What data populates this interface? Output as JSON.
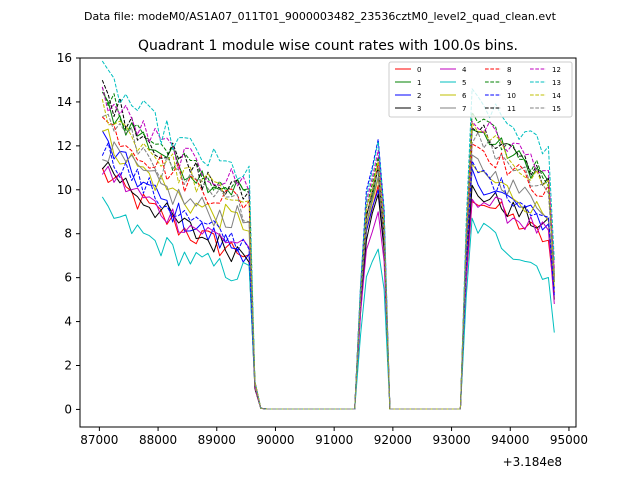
{
  "suptitle": "Data file: modeM0/AS1A07_011T01_9000003482_23536cztM0_level2_quad_clean.evt",
  "chart_data": {
    "type": "line",
    "title": "Quadrant 1 module wise count rates with 100.0s bins.",
    "xlabel": "",
    "ylabel": "",
    "x_offset_label": "+3.184e8",
    "xlim": [
      86670,
      95120
    ],
    "ylim": [
      -0.8,
      16
    ],
    "x_ticks": [
      87000,
      88000,
      89000,
      90000,
      91000,
      92000,
      93000,
      94000,
      95000
    ],
    "x_tick_labels": [
      "87000",
      "88000",
      "89000",
      "90000",
      "91000",
      "92000",
      "93000",
      "94000",
      "95000"
    ],
    "y_ticks": [
      0,
      2,
      4,
      6,
      8,
      10,
      12,
      14,
      16
    ],
    "y_tick_labels": [
      "0",
      "2",
      "4",
      "6",
      "8",
      "10",
      "12",
      "14",
      "16"
    ],
    "segments": [
      {
        "x_start": 87050,
        "x_end": 89550,
        "step": 100
      },
      {
        "x_start": 89650,
        "x_end": 89750,
        "step": 100
      },
      {
        "x_start": 89850,
        "x_end": 91350,
        "step": 100
      },
      {
        "x_start": 91450,
        "x_end": 91850,
        "step": 100
      },
      {
        "x_start": 91950,
        "x_end": 93150,
        "step": 100
      },
      {
        "x_start": 93250,
        "x_end": 94750,
        "step": 100
      }
    ],
    "series": [
      {
        "name": "0",
        "color": "#ff0000",
        "dash": "solid",
        "start": 10.8,
        "end": 7.2,
        "peak": 10.2,
        "seg5_start": 9.8,
        "seg5_end": 7.5,
        "final": 5.3
      },
      {
        "name": "1",
        "color": "#008000",
        "dash": "solid",
        "start": 14.0,
        "end": 10.0,
        "peak": 11.0,
        "seg5_start": 12.8,
        "seg5_end": 10.3,
        "final": 5.8
      },
      {
        "name": "2",
        "color": "#0000ff",
        "dash": "solid",
        "start": 12.3,
        "end": 7.3,
        "peak": 10.0,
        "seg5_start": 10.6,
        "seg5_end": 8.2,
        "final": 5.5
      },
      {
        "name": "3",
        "color": "#000000",
        "dash": "solid",
        "start": 11.3,
        "end": 7.2,
        "peak": 9.8,
        "seg5_start": 10.0,
        "seg5_end": 8.1,
        "final": 5.0
      },
      {
        "name": "4",
        "color": "#bf00bf",
        "dash": "solid",
        "start": 11.0,
        "end": 7.6,
        "peak": 9.0,
        "seg5_start": 9.8,
        "seg5_end": 7.8,
        "final": 4.8
      },
      {
        "name": "5",
        "color": "#00bfbf",
        "dash": "solid",
        "start": 9.1,
        "end": 6.2,
        "peak": 7.3,
        "seg5_start": 8.5,
        "seg5_end": 6.0,
        "final": 3.5
      },
      {
        "name": "6",
        "color": "#bfbf00",
        "dash": "solid",
        "start": 12.5,
        "end": 8.5,
        "peak": 10.5,
        "seg5_start": 11.0,
        "seg5_end": 8.6,
        "final": 5.6
      },
      {
        "name": "7",
        "color": "#808080",
        "dash": "solid",
        "start": 12.0,
        "end": 8.6,
        "peak": 10.6,
        "seg5_start": 11.3,
        "seg5_end": 8.9,
        "final": 5.9
      },
      {
        "name": "8",
        "color": "#ff0000",
        "dash": "dashed",
        "start": 13.2,
        "end": 9.5,
        "peak": 11.2,
        "seg5_start": 12.2,
        "seg5_end": 9.6,
        "final": 6.0
      },
      {
        "name": "9",
        "color": "#008000",
        "dash": "dashed",
        "start": 14.3,
        "end": 10.0,
        "peak": 11.5,
        "seg5_start": 13.2,
        "seg5_end": 10.4,
        "final": 6.2
      },
      {
        "name": "10",
        "color": "#0000ff",
        "dash": "dashed",
        "start": 12.0,
        "end": 7.6,
        "peak": 12.3,
        "seg5_start": 11.0,
        "seg5_end": 8.5,
        "final": 5.2
      },
      {
        "name": "11",
        "color": "#000000",
        "dash": "dashed",
        "start": 14.6,
        "end": 9.8,
        "peak": 11.0,
        "seg5_start": 13.0,
        "seg5_end": 10.2,
        "final": 6.1
      },
      {
        "name": "12",
        "color": "#bf00bf",
        "dash": "dashed",
        "start": 14.3,
        "end": 10.3,
        "peak": 11.8,
        "seg5_start": 13.2,
        "seg5_end": 10.7,
        "final": 6.4
      },
      {
        "name": "13",
        "color": "#00bfbf",
        "dash": "dashed",
        "start": 15.2,
        "end": 10.8,
        "peak": 12.2,
        "seg5_start": 14.2,
        "seg5_end": 11.5,
        "final": 6.8
      },
      {
        "name": "14",
        "color": "#bfbf00",
        "dash": "dashed",
        "start": 13.8,
        "end": 9.6,
        "peak": 11.3,
        "seg5_start": 12.8,
        "seg5_end": 10.0,
        "final": 6.0
      },
      {
        "name": "15",
        "color": "#808080",
        "dash": "dashed",
        "start": 13.5,
        "end": 9.2,
        "peak": 11.0,
        "seg5_start": 12.5,
        "seg5_end": 9.9,
        "final": 5.9
      }
    ],
    "legend_position": "top-right",
    "legend_columns": 4
  }
}
